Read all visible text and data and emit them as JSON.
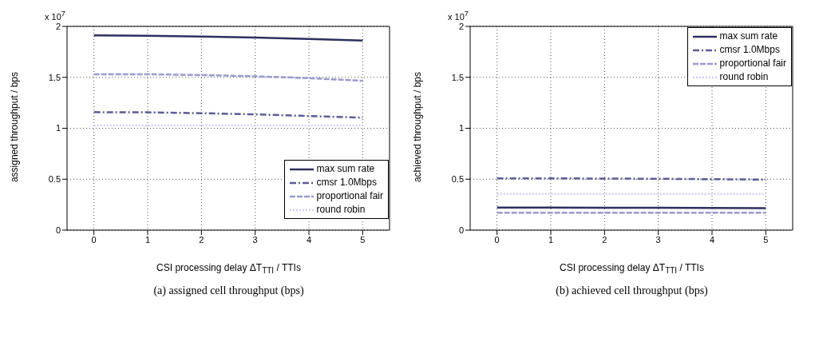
{
  "chart_data": [
    {
      "type": "line",
      "annotations": [
        "x 10$^{7}$",
        "(a) assigned cell throughput (bps)"
      ],
      "xlabel": "CSI processing delay ΔT$_{TTI}$ / TTIs",
      "ylabel": "assigned throughput / bps",
      "x": [
        0,
        1,
        2,
        3,
        4,
        5
      ],
      "xlim": [
        -0.5,
        5.5
      ],
      "xticks": [
        0,
        1,
        2,
        3,
        4,
        5
      ],
      "ylim": [
        0,
        2
      ],
      "yticks": [
        0,
        0.5,
        1,
        1.5,
        2
      ],
      "grid": true,
      "legend": "bottom right",
      "series": [
        {
          "name": "max sum rate",
          "color": "#2e3060",
          "line_style": "solid",
          "values": [
            1.912,
            1.908,
            1.9,
            1.89,
            1.876,
            1.86
          ]
        },
        {
          "name": "cmsr 1.0Mbps",
          "color": "#5c5c94",
          "line_style": "dashdot",
          "values": [
            1.158,
            1.156,
            1.148,
            1.136,
            1.12,
            1.104
          ]
        },
        {
          "name": "proportional fair",
          "color": "#9a9ad0",
          "line_style": "dashed",
          "values": [
            1.53,
            1.53,
            1.522,
            1.51,
            1.492,
            1.466
          ]
        },
        {
          "name": "round robin",
          "color": "#cfd0f8",
          "line_style": "dotted",
          "values": [
            1.028,
            1.028,
            1.028,
            1.028,
            1.028,
            1.028
          ]
        }
      ]
    },
    {
      "type": "line",
      "annotations": [
        "x 10$^{7}$",
        "(b) achieved cell throughput (bps)"
      ],
      "xlabel": "CSI processing delay ΔT$_{TTI}$ / TTIs",
      "ylabel": "achieved throughput / bps",
      "x": [
        0,
        1,
        2,
        3,
        4,
        5
      ],
      "xlim": [
        -0.5,
        5.5
      ],
      "xticks": [
        0,
        1,
        2,
        3,
        4,
        5
      ],
      "ylim": [
        0,
        2
      ],
      "yticks": [
        0,
        0.5,
        1,
        1.5,
        2
      ],
      "grid": true,
      "legend": "top right",
      "series": [
        {
          "name": "max sum rate",
          "color": "#2e3060",
          "line_style": "solid",
          "values": [
            0.222,
            0.222,
            0.22,
            0.22,
            0.218,
            0.216
          ]
        },
        {
          "name": "cmsr 1.0Mbps",
          "color": "#5c5c94",
          "line_style": "dashdot",
          "values": [
            0.508,
            0.508,
            0.506,
            0.504,
            0.5,
            0.496
          ]
        },
        {
          "name": "proportional fair",
          "color": "#9a9ad0",
          "line_style": "dashed",
          "values": [
            0.17,
            0.17,
            0.17,
            0.17,
            0.17,
            0.17
          ]
        },
        {
          "name": "round robin",
          "color": "#cfd0f8",
          "line_style": "dotted",
          "values": [
            0.354,
            0.354,
            0.354,
            0.354,
            0.354,
            0.354
          ]
        }
      ]
    }
  ]
}
